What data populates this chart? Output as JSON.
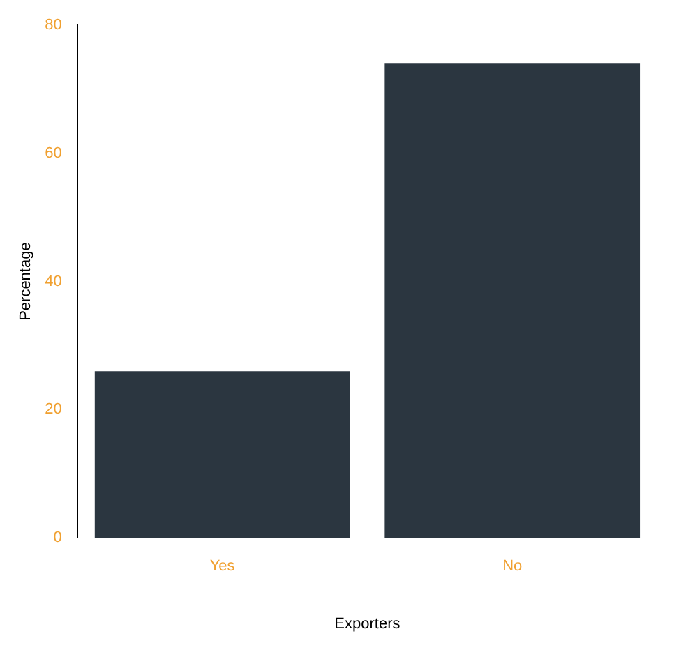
{
  "chart_data": {
    "type": "bar",
    "xlabel": "Exporters",
    "ylabel": "Percentage",
    "categories": [
      "Yes",
      "No"
    ],
    "values": [
      26,
      74
    ],
    "color": "#2b3640",
    "ylim": [
      0,
      80
    ],
    "yticks": [
      0,
      20,
      40,
      60,
      80
    ],
    "grid": false,
    "legend": false
  }
}
